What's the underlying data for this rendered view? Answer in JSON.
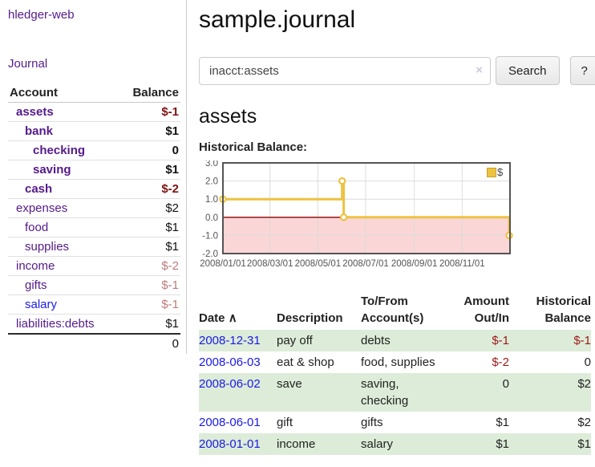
{
  "sidebar": {
    "brand": "hledger-web",
    "nav": {
      "journal": "Journal"
    },
    "accounts": {
      "headers": {
        "account": "Account",
        "balance": "Balance"
      },
      "rows": [
        {
          "name": "assets",
          "balance": "$-1",
          "indent": 1,
          "bold": true
        },
        {
          "name": "bank",
          "balance": "$1",
          "indent": 2,
          "bold": true
        },
        {
          "name": "checking",
          "balance": "0",
          "indent": 3,
          "bold": true
        },
        {
          "name": "saving",
          "balance": "$1",
          "indent": 3,
          "bold": true
        },
        {
          "name": "cash",
          "balance": "$-2",
          "indent": 2,
          "bold": true
        },
        {
          "name": "expenses",
          "balance": "$2",
          "indent": 1,
          "bold": false
        },
        {
          "name": "food",
          "balance": "$1",
          "indent": 2,
          "bold": false
        },
        {
          "name": "supplies",
          "balance": "$1",
          "indent": 2,
          "bold": false
        },
        {
          "name": "income",
          "balance": "$-2",
          "indent": 1,
          "bold": false
        },
        {
          "name": "gifts",
          "balance": "$-1",
          "indent": 2,
          "bold": false
        },
        {
          "name": "salary",
          "balance": "$-1",
          "indent": 2,
          "bold": false,
          "link_color": "blue"
        },
        {
          "name": "liabilities:debts",
          "balance": "$1",
          "indent": 1,
          "bold": false
        }
      ],
      "total": "0"
    }
  },
  "header": {
    "title": "sample.journal"
  },
  "search": {
    "value": "inacct:assets",
    "clear_icon": "×",
    "button": "Search",
    "help_button": "?"
  },
  "account_page": {
    "title": "assets",
    "chart_label": "Historical Balance:"
  },
  "chart_data": {
    "type": "line",
    "step": true,
    "title": "Historical Balance:",
    "series": [
      {
        "name": "$",
        "color": "#edc240",
        "points": [
          [
            "2008-01-01",
            1.0
          ],
          [
            "2008-06-01",
            2.0
          ],
          [
            "2008-06-03",
            0.0
          ],
          [
            "2008-12-31",
            -1.0
          ]
        ]
      }
    ],
    "x_ticks": [
      "2008/01/01",
      "2008/03/01",
      "2008/05/01",
      "2008/07/01",
      "2008/09/01",
      "2008/11/01"
    ],
    "y_ticks": [
      3.0,
      2.0,
      1.0,
      0.0,
      -1.0,
      -2.0
    ],
    "xlim": [
      "2008-01-01",
      "2009-01-01"
    ],
    "ylim": [
      -2,
      3
    ],
    "grid": true,
    "negative_fill": "#fbd6d6",
    "zero_line_color": "#8b0000",
    "legend": {
      "label": "$",
      "position": "top-right"
    }
  },
  "transactions": {
    "headers": {
      "date": "Date",
      "sort_indicator": "∧",
      "description": "Description",
      "accounts": "To/From Account(s)",
      "amount": "Amount Out/In",
      "balance": "Historical Balance"
    },
    "rows": [
      {
        "date": "2008-12-31",
        "description": "pay off",
        "accounts": "debts",
        "amount": "$-1",
        "balance": "$-1"
      },
      {
        "date": "2008-06-03",
        "description": "eat & shop",
        "accounts": "food, supplies",
        "amount": "$-2",
        "balance": "0"
      },
      {
        "date": "2008-06-02",
        "description": "save",
        "accounts": "saving,\nchecking",
        "amount": "0",
        "balance": "$2"
      },
      {
        "date": "2008-06-01",
        "description": "gift",
        "accounts": "gifts",
        "amount": "$1",
        "balance": "$2"
      },
      {
        "date": "2008-01-01",
        "description": "income",
        "accounts": "salary",
        "amount": "$1",
        "balance": "$1"
      }
    ]
  },
  "colors": {
    "link_purple": "#551a8b",
    "link_blue": "#1a1aee",
    "negative_strong": "#7f1212",
    "negative_soft": "#bb7b7b",
    "negative_table": "#9c1a1a",
    "row_stripe_green": "#ddecd8",
    "series_gold": "#edc240",
    "negative_region_pink": "#fbd6d6",
    "zero_line": "#8b0000",
    "axis_gray": "#545454"
  }
}
